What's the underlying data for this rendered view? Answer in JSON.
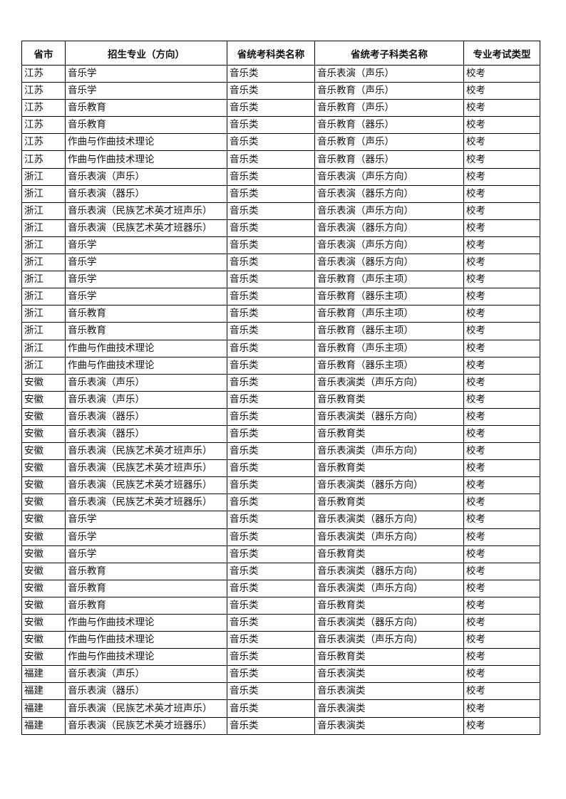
{
  "table": {
    "headers": [
      "省市",
      "招生专业（方向）",
      "省统考科类名称",
      "省统考子科类名称",
      "专业考试类型"
    ],
    "rows": [
      [
        "江苏",
        "音乐学",
        "音乐类",
        "音乐表演（声乐）",
        "校考"
      ],
      [
        "江苏",
        "音乐学",
        "音乐类",
        "音乐教育（声乐）",
        "校考"
      ],
      [
        "江苏",
        "音乐教育",
        "音乐类",
        "音乐教育（声乐）",
        "校考"
      ],
      [
        "江苏",
        "音乐教育",
        "音乐类",
        "音乐教育（器乐）",
        "校考"
      ],
      [
        "江苏",
        "作曲与作曲技术理论",
        "音乐类",
        "音乐教育（声乐）",
        "校考"
      ],
      [
        "江苏",
        "作曲与作曲技术理论",
        "音乐类",
        "音乐教育（器乐）",
        "校考"
      ],
      [
        "浙江",
        "音乐表演（声乐）",
        "音乐类",
        "音乐表演（声乐方向）",
        "校考"
      ],
      [
        "浙江",
        "音乐表演（器乐）",
        "音乐类",
        "音乐表演（器乐方向）",
        "校考"
      ],
      [
        "浙江",
        "音乐表演（民族艺术英才班声乐）",
        "音乐类",
        "音乐表演（声乐方向）",
        "校考"
      ],
      [
        "浙江",
        "音乐表演（民族艺术英才班器乐）",
        "音乐类",
        "音乐表演（器乐方向）",
        "校考"
      ],
      [
        "浙江",
        "音乐学",
        "音乐类",
        "音乐表演（声乐方向）",
        "校考"
      ],
      [
        "浙江",
        "音乐学",
        "音乐类",
        "音乐表演（器乐方向）",
        "校考"
      ],
      [
        "浙江",
        "音乐学",
        "音乐类",
        "音乐教育（声乐主项）",
        "校考"
      ],
      [
        "浙江",
        "音乐学",
        "音乐类",
        "音乐教育（器乐主项）",
        "校考"
      ],
      [
        "浙江",
        "音乐教育",
        "音乐类",
        "音乐教育（声乐主项）",
        "校考"
      ],
      [
        "浙江",
        "音乐教育",
        "音乐类",
        "音乐教育（器乐主项）",
        "校考"
      ],
      [
        "浙江",
        "作曲与作曲技术理论",
        "音乐类",
        "音乐教育（声乐主项）",
        "校考"
      ],
      [
        "浙江",
        "作曲与作曲技术理论",
        "音乐类",
        "音乐教育（器乐主项）",
        "校考"
      ],
      [
        "安徽",
        "音乐表演（声乐）",
        "音乐类",
        "音乐表演类（声乐方向）",
        "校考"
      ],
      [
        "安徽",
        "音乐表演（声乐）",
        "音乐类",
        "音乐教育类",
        "校考"
      ],
      [
        "安徽",
        "音乐表演（器乐）",
        "音乐类",
        "音乐表演类（器乐方向）",
        "校考"
      ],
      [
        "安徽",
        "音乐表演（器乐）",
        "音乐类",
        "音乐教育类",
        "校考"
      ],
      [
        "安徽",
        "音乐表演（民族艺术英才班声乐）",
        "音乐类",
        "音乐表演类（声乐方向）",
        "校考"
      ],
      [
        "安徽",
        "音乐表演（民族艺术英才班声乐）",
        "音乐类",
        "音乐教育类",
        "校考"
      ],
      [
        "安徽",
        "音乐表演（民族艺术英才班器乐）",
        "音乐类",
        "音乐表演类（器乐方向）",
        "校考"
      ],
      [
        "安徽",
        "音乐表演（民族艺术英才班器乐）",
        "音乐类",
        "音乐教育类",
        "校考"
      ],
      [
        "安徽",
        "音乐学",
        "音乐类",
        "音乐表演类（器乐方向）",
        "校考"
      ],
      [
        "安徽",
        "音乐学",
        "音乐类",
        "音乐表演类（声乐方向）",
        "校考"
      ],
      [
        "安徽",
        "音乐学",
        "音乐类",
        "音乐教育类",
        "校考"
      ],
      [
        "安徽",
        "音乐教育",
        "音乐类",
        "音乐表演类（器乐方向）",
        "校考"
      ],
      [
        "安徽",
        "音乐教育",
        "音乐类",
        "音乐表演类（声乐方向）",
        "校考"
      ],
      [
        "安徽",
        "音乐教育",
        "音乐类",
        "音乐教育类",
        "校考"
      ],
      [
        "安徽",
        "作曲与作曲技术理论",
        "音乐类",
        "音乐表演类（器乐方向）",
        "校考"
      ],
      [
        "安徽",
        "作曲与作曲技术理论",
        "音乐类",
        "音乐表演类（声乐方向）",
        "校考"
      ],
      [
        "安徽",
        "作曲与作曲技术理论",
        "音乐类",
        "音乐教育类",
        "校考"
      ],
      [
        "福建",
        "音乐表演（声乐）",
        "音乐类",
        "音乐表演类",
        "校考"
      ],
      [
        "福建",
        "音乐表演（器乐）",
        "音乐类",
        "音乐表演类",
        "校考"
      ],
      [
        "福建",
        "音乐表演（民族艺术英才班声乐）",
        "音乐类",
        "音乐表演类",
        "校考"
      ],
      [
        "福建",
        "音乐表演（民族艺术英才班器乐）",
        "音乐类",
        "音乐表演类",
        "校考"
      ]
    ]
  }
}
